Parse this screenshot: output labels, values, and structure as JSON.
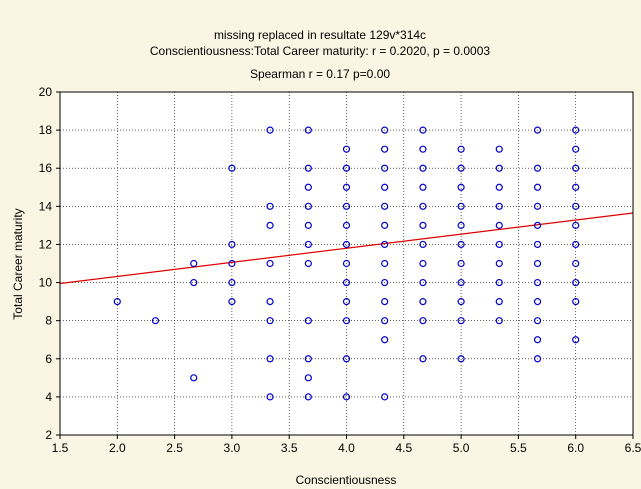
{
  "chart_data": {
    "type": "scatter",
    "title_lines": [
      "missing replaced in resultate 129v*314c",
      "Conscientiousness:Total Career maturity:   r = 0.2020, p = 0.0003",
      "Spearman r = 0.17 p=0.00"
    ],
    "xlabel": "Conscientiousness",
    "ylabel": "Total Career maturity",
    "xlim": [
      1.5,
      6.5
    ],
    "ylim": [
      2,
      20
    ],
    "x_ticks": [
      "1.5",
      "2.0",
      "2.5",
      "3.0",
      "3.5",
      "4.0",
      "4.5",
      "5.0",
      "5.5",
      "6.0",
      "6.5"
    ],
    "y_ticks": [
      "2",
      "4",
      "6",
      "8",
      "10",
      "12",
      "14",
      "16",
      "18",
      "20"
    ],
    "grid": true,
    "marker_color": "#0000cc",
    "fit_line_color": "#dd0000",
    "regression_line": {
      "x": [
        1.5,
        6.5
      ],
      "y": [
        9.95,
        13.65
      ]
    },
    "points": [
      [
        2.0,
        9
      ],
      [
        2.333,
        8
      ],
      [
        2.667,
        11
      ],
      [
        2.667,
        10
      ],
      [
        2.667,
        5
      ],
      [
        3.0,
        16
      ],
      [
        3.0,
        12
      ],
      [
        3.0,
        11
      ],
      [
        3.0,
        10
      ],
      [
        3.0,
        9
      ],
      [
        3.333,
        18
      ],
      [
        3.333,
        14
      ],
      [
        3.333,
        13
      ],
      [
        3.333,
        11
      ],
      [
        3.333,
        9
      ],
      [
        3.333,
        8
      ],
      [
        3.333,
        6
      ],
      [
        3.333,
        4
      ],
      [
        3.667,
        18
      ],
      [
        3.667,
        16
      ],
      [
        3.667,
        15
      ],
      [
        3.667,
        14
      ],
      [
        3.667,
        13
      ],
      [
        3.667,
        12
      ],
      [
        3.667,
        11
      ],
      [
        3.667,
        8
      ],
      [
        3.667,
        6
      ],
      [
        3.667,
        5
      ],
      [
        3.667,
        4
      ],
      [
        4.0,
        17
      ],
      [
        4.0,
        16
      ],
      [
        4.0,
        15
      ],
      [
        4.0,
        14
      ],
      [
        4.0,
        13
      ],
      [
        4.0,
        12
      ],
      [
        4.0,
        11
      ],
      [
        4.0,
        10
      ],
      [
        4.0,
        9
      ],
      [
        4.0,
        8
      ],
      [
        4.0,
        6
      ],
      [
        4.0,
        4
      ],
      [
        4.333,
        18
      ],
      [
        4.333,
        17
      ],
      [
        4.333,
        16
      ],
      [
        4.333,
        15
      ],
      [
        4.333,
        14
      ],
      [
        4.333,
        13
      ],
      [
        4.333,
        12
      ],
      [
        4.333,
        11
      ],
      [
        4.333,
        10
      ],
      [
        4.333,
        9
      ],
      [
        4.333,
        8
      ],
      [
        4.333,
        7
      ],
      [
        4.333,
        4
      ],
      [
        4.667,
        18
      ],
      [
        4.667,
        17
      ],
      [
        4.667,
        16
      ],
      [
        4.667,
        15
      ],
      [
        4.667,
        14
      ],
      [
        4.667,
        13
      ],
      [
        4.667,
        12
      ],
      [
        4.667,
        11
      ],
      [
        4.667,
        10
      ],
      [
        4.667,
        9
      ],
      [
        4.667,
        8
      ],
      [
        4.667,
        6
      ],
      [
        5.0,
        17
      ],
      [
        5.0,
        16
      ],
      [
        5.0,
        15
      ],
      [
        5.0,
        14
      ],
      [
        5.0,
        13
      ],
      [
        5.0,
        12
      ],
      [
        5.0,
        11
      ],
      [
        5.0,
        10
      ],
      [
        5.0,
        9
      ],
      [
        5.0,
        8
      ],
      [
        5.0,
        6
      ],
      [
        5.333,
        17
      ],
      [
        5.333,
        16
      ],
      [
        5.333,
        15
      ],
      [
        5.333,
        14
      ],
      [
        5.333,
        13
      ],
      [
        5.333,
        12
      ],
      [
        5.333,
        11
      ],
      [
        5.333,
        10
      ],
      [
        5.333,
        9
      ],
      [
        5.333,
        8
      ],
      [
        5.667,
        18
      ],
      [
        5.667,
        16
      ],
      [
        5.667,
        15
      ],
      [
        5.667,
        14
      ],
      [
        5.667,
        13
      ],
      [
        5.667,
        12
      ],
      [
        5.667,
        11
      ],
      [
        5.667,
        10
      ],
      [
        5.667,
        9
      ],
      [
        5.667,
        8
      ],
      [
        5.667,
        7
      ],
      [
        5.667,
        6
      ],
      [
        6.0,
        18
      ],
      [
        6.0,
        17
      ],
      [
        6.0,
        16
      ],
      [
        6.0,
        15
      ],
      [
        6.0,
        14
      ],
      [
        6.0,
        13
      ],
      [
        6.0,
        12
      ],
      [
        6.0,
        11
      ],
      [
        6.0,
        10
      ],
      [
        6.0,
        9
      ],
      [
        6.0,
        7
      ]
    ]
  }
}
